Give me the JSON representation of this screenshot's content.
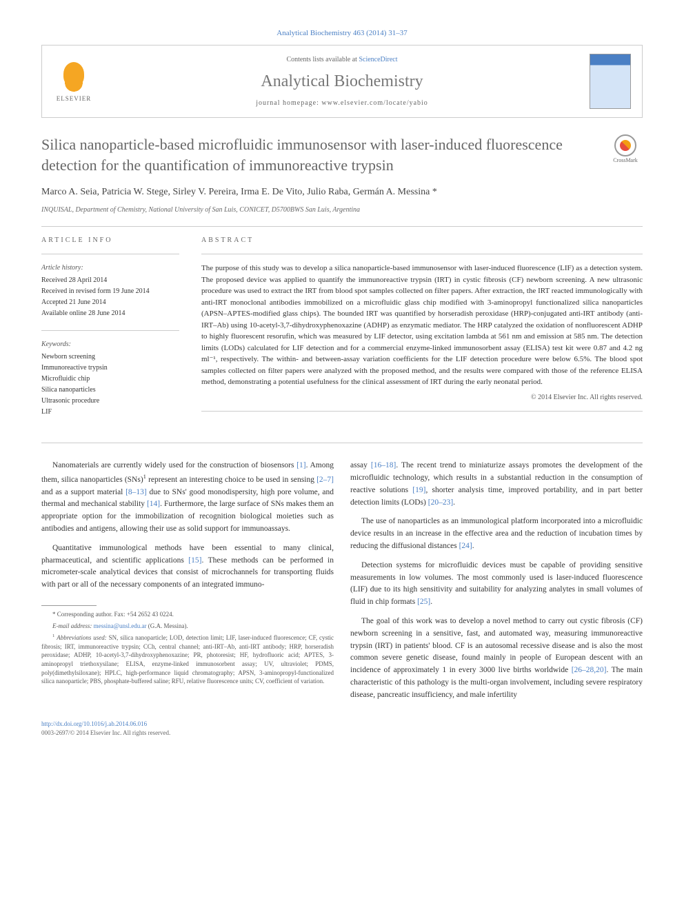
{
  "journal_ref": "Analytical Biochemistry 463 (2014) 31–37",
  "header": {
    "contents_text": "Contents lists available at ",
    "contents_link": "ScienceDirect",
    "journal_name": "Analytical Biochemistry",
    "homepage_label": "journal homepage: ",
    "homepage_url": "www.elsevier.com/locate/yabio",
    "publisher_logo_text": "ELSEVIER"
  },
  "crossmark_label": "CrossMark",
  "article": {
    "title": "Silica nanoparticle-based microfluidic immunosensor with laser-induced fluorescence detection for the quantification of immunoreactive trypsin",
    "authors": "Marco A. Seia, Patricia W. Stege, Sirley V. Pereira, Irma E. De Vito, Julio Raba, Germán A. Messina *",
    "affiliation": "INQUISAL, Department of Chemistry, National University of San Luis, CONICET, D5700BWS San Luis, Argentina"
  },
  "info": {
    "heading": "ARTICLE INFO",
    "history_label": "Article history:",
    "history": {
      "received": "Received 28 April 2014",
      "revised": "Received in revised form 19 June 2014",
      "accepted": "Accepted 21 June 2014",
      "online": "Available online 28 June 2014"
    },
    "keywords_label": "Keywords:",
    "keywords": [
      "Newborn screening",
      "Immunoreactive trypsin",
      "Microfluidic chip",
      "Silica nanoparticles",
      "Ultrasonic procedure",
      "LIF"
    ]
  },
  "abstract": {
    "heading": "ABSTRACT",
    "text": "The purpose of this study was to develop a silica nanoparticle-based immunosensor with laser-induced fluorescence (LIF) as a detection system. The proposed device was applied to quantify the immunoreactive trypsin (IRT) in cystic fibrosis (CF) newborn screening. A new ultrasonic procedure was used to extract the IRT from blood spot samples collected on filter papers. After extraction, the IRT reacted immunologically with anti-IRT monoclonal antibodies immobilized on a microfluidic glass chip modified with 3-aminopropyl functionalized silica nanoparticles (APSN–APTES-modified glass chips). The bounded IRT was quantified by horseradish peroxidase (HRP)-conjugated anti-IRT antibody (anti-IRT–Ab) using 10-acetyl-3,7-dihydroxyphenoxazine (ADHP) as enzymatic mediator. The HRP catalyzed the oxidation of nonfluorescent ADHP to highly fluorescent resorufin, which was measured by LIF detector, using excitation lambda at 561 nm and emission at 585 nm. The detection limits (LODs) calculated for LIF detection and for a commercial enzyme-linked immunosorbent assay (ELISA) test kit were 0.87 and 4.2 ng ml⁻¹, respectively. The within- and between-assay variation coefficients for the LIF detection procedure were below 6.5%. The blood spot samples collected on filter papers were analyzed with the proposed method, and the results were compared with those of the reference ELISA method, demonstrating a potential usefulness for the clinical assessment of IRT during the early neonatal period.",
    "copyright": "© 2014 Elsevier Inc. All rights reserved."
  },
  "body": {
    "col1": {
      "p1_a": "Nanomaterials are currently widely used for the construction of biosensors ",
      "p1_ref1": "[1]",
      "p1_b": ". Among them, silica nanoparticles (SNs)",
      "p1_sup": "1",
      "p1_c": " represent an interesting choice to be used in sensing ",
      "p1_ref2": "[2–7]",
      "p1_d": " and as a support material ",
      "p1_ref3": "[8–13]",
      "p1_e": " due to SNs' good monodispersity, high pore volume, and thermal and mechanical stability ",
      "p1_ref4": "[14]",
      "p1_f": ". Furthermore, the large surface of SNs makes them an appropriate option for the immobilization of recognition biological moieties such as antibodies and antigens, allowing their use as solid support for immunoassays.",
      "p2_a": "Quantitative immunological methods have been essential to many clinical, pharmaceutical, and scientific applications ",
      "p2_ref1": "[15]",
      "p2_b": ". These methods can be performed in micrometer-scale analytical devices that consist of microchannels for transporting fluids with part or all of the necessary components of an integrated immuno-"
    },
    "col2": {
      "p1_a": "assay ",
      "p1_ref1": "[16–18]",
      "p1_b": ". The recent trend to miniaturize assays promotes the development of the microfluidic technology, which results in a substantial reduction in the consumption of reactive solutions ",
      "p1_ref2": "[19]",
      "p1_c": ", shorter analysis time, improved portability, and in part better detection limits (LODs) ",
      "p1_ref3": "[20–23]",
      "p1_d": ".",
      "p2_a": "The use of nanoparticles as an immunological platform incorporated into a microfluidic device results in an increase in the effective area and the reduction of incubation times by reducing the diffusional distances ",
      "p2_ref1": "[24]",
      "p2_b": ".",
      "p3_a": "Detection systems for microfluidic devices must be capable of providing sensitive measurements in low volumes. The most commonly used is laser-induced fluorescence (LIF) due to its high sensitivity and suitability for analyzing analytes in small volumes of fluid in chip formats ",
      "p3_ref1": "[25]",
      "p3_b": ".",
      "p4_a": "The goal of this work was to develop a novel method to carry out cystic fibrosis (CF) newborn screening in a sensitive, fast, and automated way, measuring immunoreactive trypsin (IRT) in patients' blood. CF is an autosomal recessive disease and is also the most common severe genetic disease, found mainly in people of European descent with an incidence of approximately 1 in every 3000 live births worldwide ",
      "p4_ref1": "[26–28,20]",
      "p4_b": ". The main characteristic of this pathology is the multi-organ involvement, including severe respiratory disease, pancreatic insufficiency, and male infertility"
    }
  },
  "footer": {
    "corresponding": "* Corresponding author. Fax: +54 2652 43 0224.",
    "email_label": "E-mail address: ",
    "email": "messina@unsl.edu.ar",
    "email_suffix": " (G.A. Messina).",
    "abbrev_label": "Abbreviations used:",
    "abbrev_text": " SN, silica nanoparticle; LOD, detection limit; LIF, laser-induced fluorescence; CF, cystic fibrosis; IRT, immunoreactive trypsin; CCh, central channel; anti-IRT–Ab, anti-IRT antibody; HRP, horseradish peroxidase; ADHP, 10-acetyl-3,7-dihydroxyphenoxazine; PR, photoresist; HF, hydrofluoric acid; APTES, 3-aminopropyl triethoxysilane; ELISA, enzyme-linked immunosorbent assay; UV, ultraviolet; PDMS, poly(dimethylsiloxane); HPLC, high-performance liquid chromatography; APSN, 3-aminopropyl-functionalized silica nanoparticle; PBS, phosphate-buffered saline; RFU, relative fluorescence units; CV, coefficient of variation.",
    "abbrev_sup": "1"
  },
  "doi": "http://dx.doi.org/10.1016/j.ab.2014.06.016",
  "issn": "0003-2697/© 2014 Elsevier Inc. All rights reserved.",
  "colors": {
    "link": "#4a7fc4",
    "text": "#333333",
    "muted": "#666666",
    "border": "#cccccc"
  }
}
